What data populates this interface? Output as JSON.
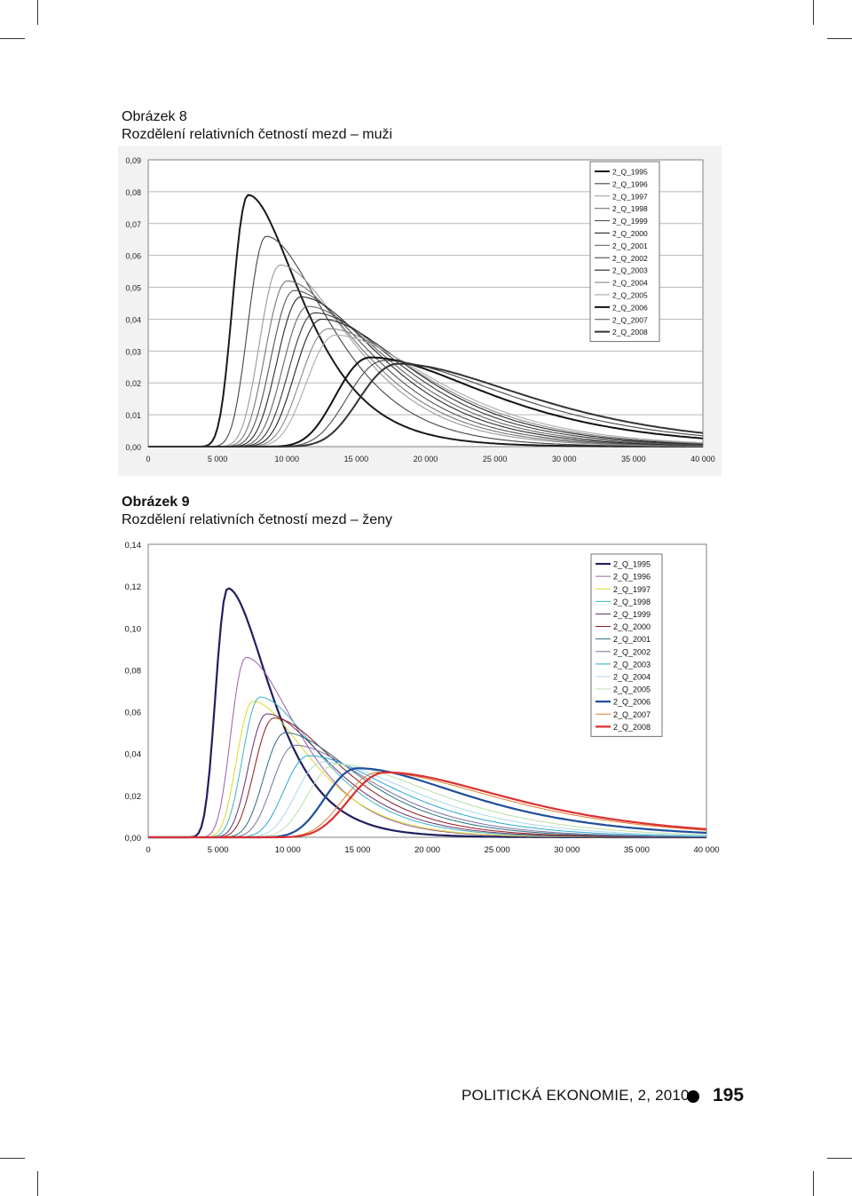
{
  "figure8": {
    "label": "Obrázek 8",
    "title": "Rozdělení relativních četností mezd – muži"
  },
  "figure9": {
    "label": "Obrázek 9",
    "title": "Rozdělení relativních četností mezd – ženy"
  },
  "footer": {
    "journal": "POLITICKÁ EKONOMIE, 2, 2010",
    "page": "195"
  },
  "chart_data": [
    {
      "type": "line",
      "title": "",
      "xlabel": "",
      "ylabel": "",
      "xlim": [
        0,
        40000
      ],
      "ylim": [
        0,
        0.09
      ],
      "grid": true,
      "legend_position": "top-right",
      "x_ticks": [
        "0",
        "5 000",
        "10 000",
        "15 000",
        "20 000",
        "25 000",
        "30 000",
        "35 000",
        "40 000"
      ],
      "y_ticks": [
        "0,00",
        "0,01",
        "0,02",
        "0,03",
        "0,04",
        "0,05",
        "0,06",
        "0,07",
        "0,08",
        "0,09"
      ],
      "series": [
        {
          "name": "2_Q_1995",
          "color": "#1a1a1a",
          "peak_x": 7200,
          "peak_y": 0.079
        },
        {
          "name": "2_Q_1996",
          "color": "#444444",
          "peak_x": 8500,
          "peak_y": 0.066
        },
        {
          "name": "2_Q_1997",
          "color": "#999999",
          "peak_x": 9500,
          "peak_y": 0.057
        },
        {
          "name": "2_Q_1998",
          "color": "#777777",
          "peak_x": 10000,
          "peak_y": 0.052
        },
        {
          "name": "2_Q_1999",
          "color": "#555555",
          "peak_x": 10500,
          "peak_y": 0.049
        },
        {
          "name": "2_Q_2000",
          "color": "#2a2a2a",
          "peak_x": 11000,
          "peak_y": 0.047
        },
        {
          "name": "2_Q_2001",
          "color": "#666666",
          "peak_x": 11500,
          "peak_y": 0.044
        },
        {
          "name": "2_Q_2002",
          "color": "#3a3a3a",
          "peak_x": 12000,
          "peak_y": 0.042
        },
        {
          "name": "2_Q_2003",
          "color": "#222222",
          "peak_x": 12500,
          "peak_y": 0.04
        },
        {
          "name": "2_Q_2004",
          "color": "#888888",
          "peak_x": 13000,
          "peak_y": 0.037
        },
        {
          "name": "2_Q_2005",
          "color": "#aaaaaa",
          "peak_x": 13500,
          "peak_y": 0.035
        },
        {
          "name": "2_Q_2006",
          "color": "#111111",
          "peak_x": 16000,
          "peak_y": 0.028
        },
        {
          "name": "2_Q_2007",
          "color": "#4a4a4a",
          "peak_x": 17000,
          "peak_y": 0.027
        },
        {
          "name": "2_Q_2008",
          "color": "#333333",
          "peak_x": 18000,
          "peak_y": 0.026
        }
      ]
    },
    {
      "type": "line",
      "title": "",
      "xlabel": "",
      "ylabel": "",
      "xlim": [
        0,
        40000
      ],
      "ylim": [
        0,
        0.14
      ],
      "grid": false,
      "legend_position": "top-right",
      "x_ticks": [
        "0",
        "5 000",
        "10 000",
        "15 000",
        "20 000",
        "25 000",
        "30 000",
        "35 000",
        "40 000"
      ],
      "y_ticks": [
        "0,00",
        "0,02",
        "0,04",
        "0,06",
        "0,08",
        "0,10",
        "0,12",
        "0,14"
      ],
      "series": [
        {
          "name": "2_Q_1995",
          "color": "#1f1f5e",
          "peak_x": 5700,
          "peak_y": 0.119
        },
        {
          "name": "2_Q_1996",
          "color": "#9b5ea3",
          "peak_x": 7000,
          "peak_y": 0.086
        },
        {
          "name": "2_Q_1997",
          "color": "#d9d92a",
          "peak_x": 7500,
          "peak_y": 0.065
        },
        {
          "name": "2_Q_1998",
          "color": "#3cb3c3",
          "peak_x": 8000,
          "peak_y": 0.067
        },
        {
          "name": "2_Q_1999",
          "color": "#6a2f6a",
          "peak_x": 8500,
          "peak_y": 0.059
        },
        {
          "name": "2_Q_2000",
          "color": "#8b1a1a",
          "peak_x": 9000,
          "peak_y": 0.057
        },
        {
          "name": "2_Q_2001",
          "color": "#2a6f7a",
          "peak_x": 9800,
          "peak_y": 0.05
        },
        {
          "name": "2_Q_2002",
          "color": "#7a6fa5",
          "peak_x": 10500,
          "peak_y": 0.044
        },
        {
          "name": "2_Q_2003",
          "color": "#29a8d1",
          "peak_x": 11500,
          "peak_y": 0.039
        },
        {
          "name": "2_Q_2004",
          "color": "#a8d8e8",
          "peak_x": 12500,
          "peak_y": 0.036
        },
        {
          "name": "2_Q_2005",
          "color": "#b8e0a8",
          "peak_x": 13500,
          "peak_y": 0.035
        },
        {
          "name": "2_Q_2006",
          "color": "#1f4e9e",
          "peak_x": 15000,
          "peak_y": 0.033
        },
        {
          "name": "2_Q_2007",
          "color": "#e07b30",
          "peak_x": 16500,
          "peak_y": 0.031
        },
        {
          "name": "2_Q_2008",
          "color": "#d93030",
          "peak_x": 17000,
          "peak_y": 0.031
        }
      ]
    }
  ]
}
